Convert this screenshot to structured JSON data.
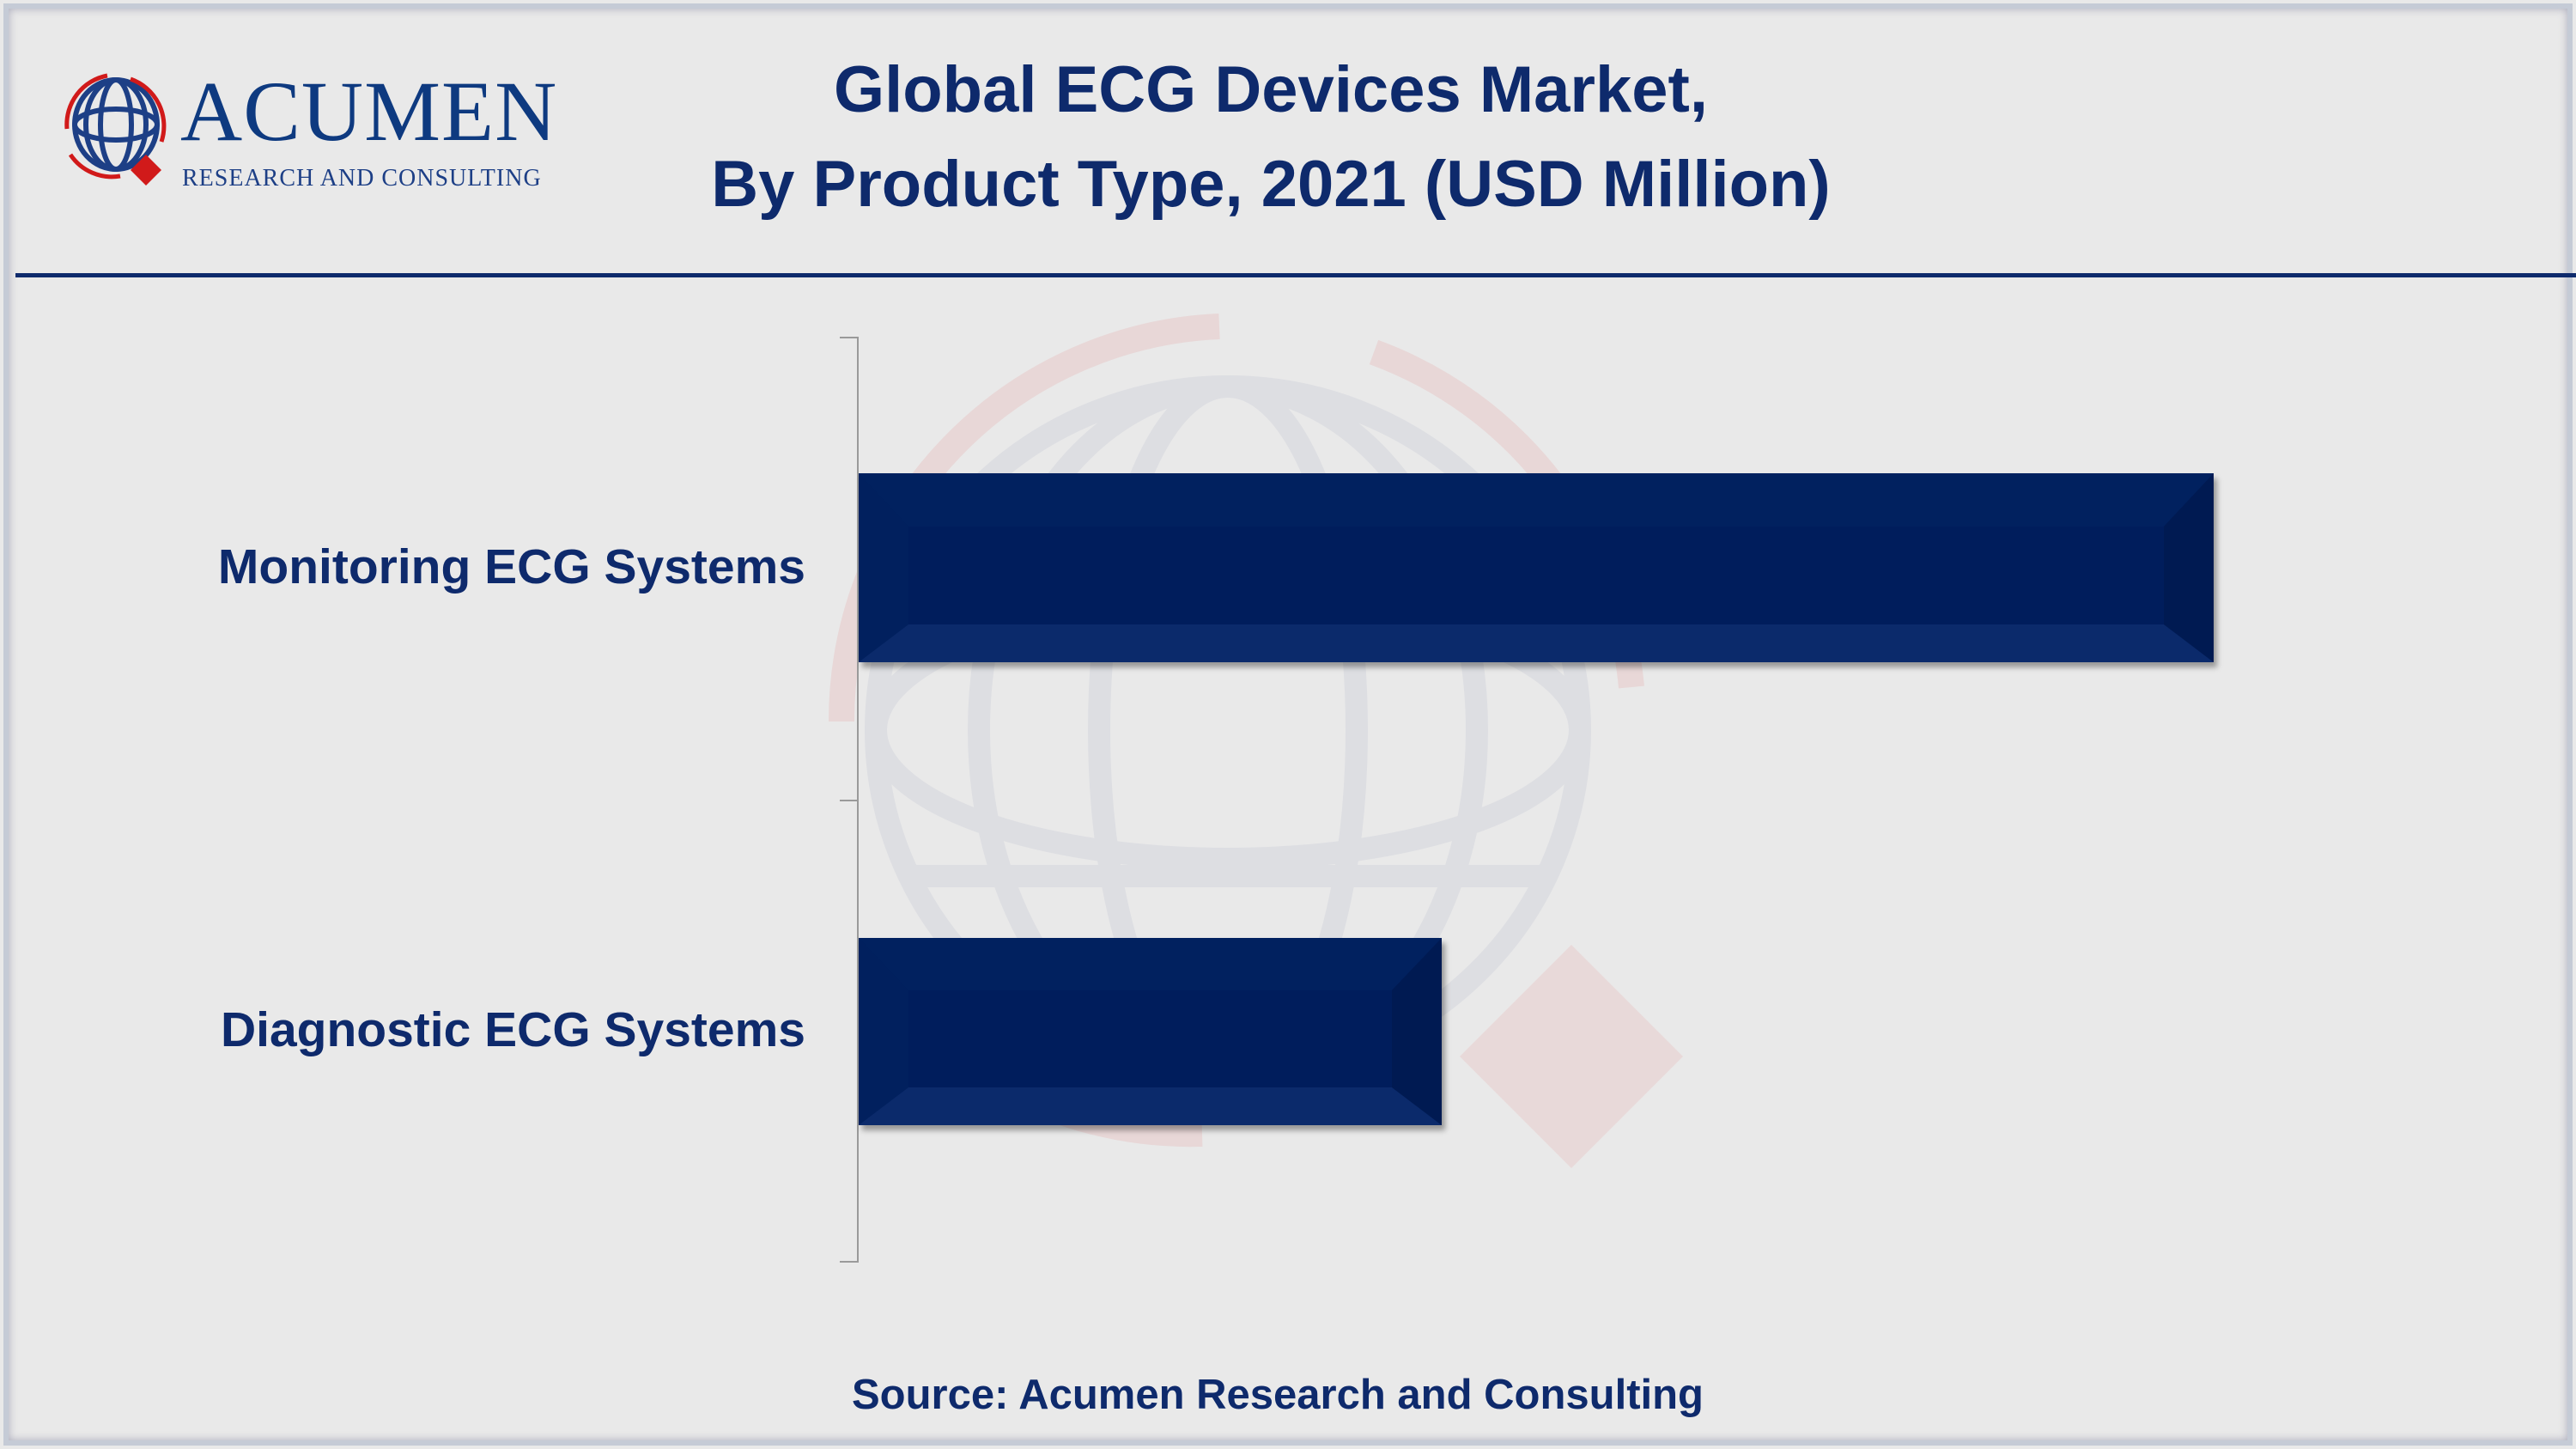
{
  "header": {
    "title_line1": "Global ECG Devices Market,",
    "title_line2": "By Product Type, 2021 (USD Million)"
  },
  "logo": {
    "name": "ACUMEN",
    "tagline": "RESEARCH AND CONSULTING"
  },
  "chart_data": {
    "type": "bar",
    "orientation": "horizontal",
    "title": "Global ECG Devices Market, By Product Type, 2021 (USD Million)",
    "categories": [
      "Monitoring ECG Systems",
      "Diagnostic ECG Systems"
    ],
    "values": [
      100,
      43
    ],
    "value_note_unprinted": true,
    "xlim": [
      0,
      100
    ],
    "grid": false,
    "legend": "none",
    "bar_color": "#01205e"
  },
  "footer": {
    "source": "Source: Acumen Research and Consulting"
  },
  "colors": {
    "brand_blue": "#0e2a6c",
    "brand_red": "#d11a1a",
    "background": "#e9e9e9"
  }
}
